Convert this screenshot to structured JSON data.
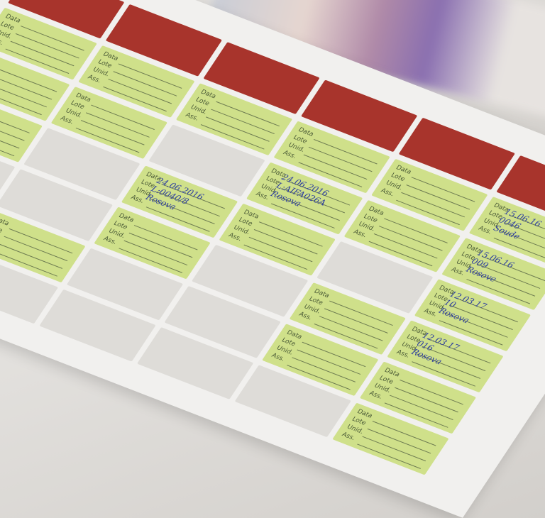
{
  "colors": {
    "header": "#a8342c",
    "filled_cell": "#cfe08a",
    "empty_cell": "#dedcd8",
    "ink": "#2d3ea0"
  },
  "field_labels": [
    "Data",
    "Lote",
    "Unid.",
    "Ass."
  ],
  "grid": [
    [
      "red",
      "red",
      "red",
      "red",
      "red",
      "red"
    ],
    [
      "green",
      "green",
      "green",
      "green",
      "green",
      "green"
    ],
    [
      "green",
      "green",
      "grey",
      "green",
      "green",
      "green"
    ],
    [
      "green",
      "grey",
      "green",
      "green",
      "grey",
      "green"
    ],
    [
      "grey",
      "grey",
      "green",
      "grey",
      "green",
      "green"
    ],
    [
      "grey",
      "green",
      "grey",
      "grey",
      "green",
      "green"
    ],
    [
      "grey",
      "grey",
      "grey",
      "grey",
      "grey",
      "green"
    ]
  ],
  "handwriting": {
    "2-3": "24.06.2016\nL:AIFA026A\nRosova",
    "3-2": "24.06.2016\nL:0040/8\nRosova",
    "1-5": "15.06.16\n0046\nSoude",
    "2-5": "15.06.16\n009\nRosove",
    "3-5": "12.03.17\n10\nRosova",
    "4-5": "12.03.17\n016\nRosova"
  }
}
